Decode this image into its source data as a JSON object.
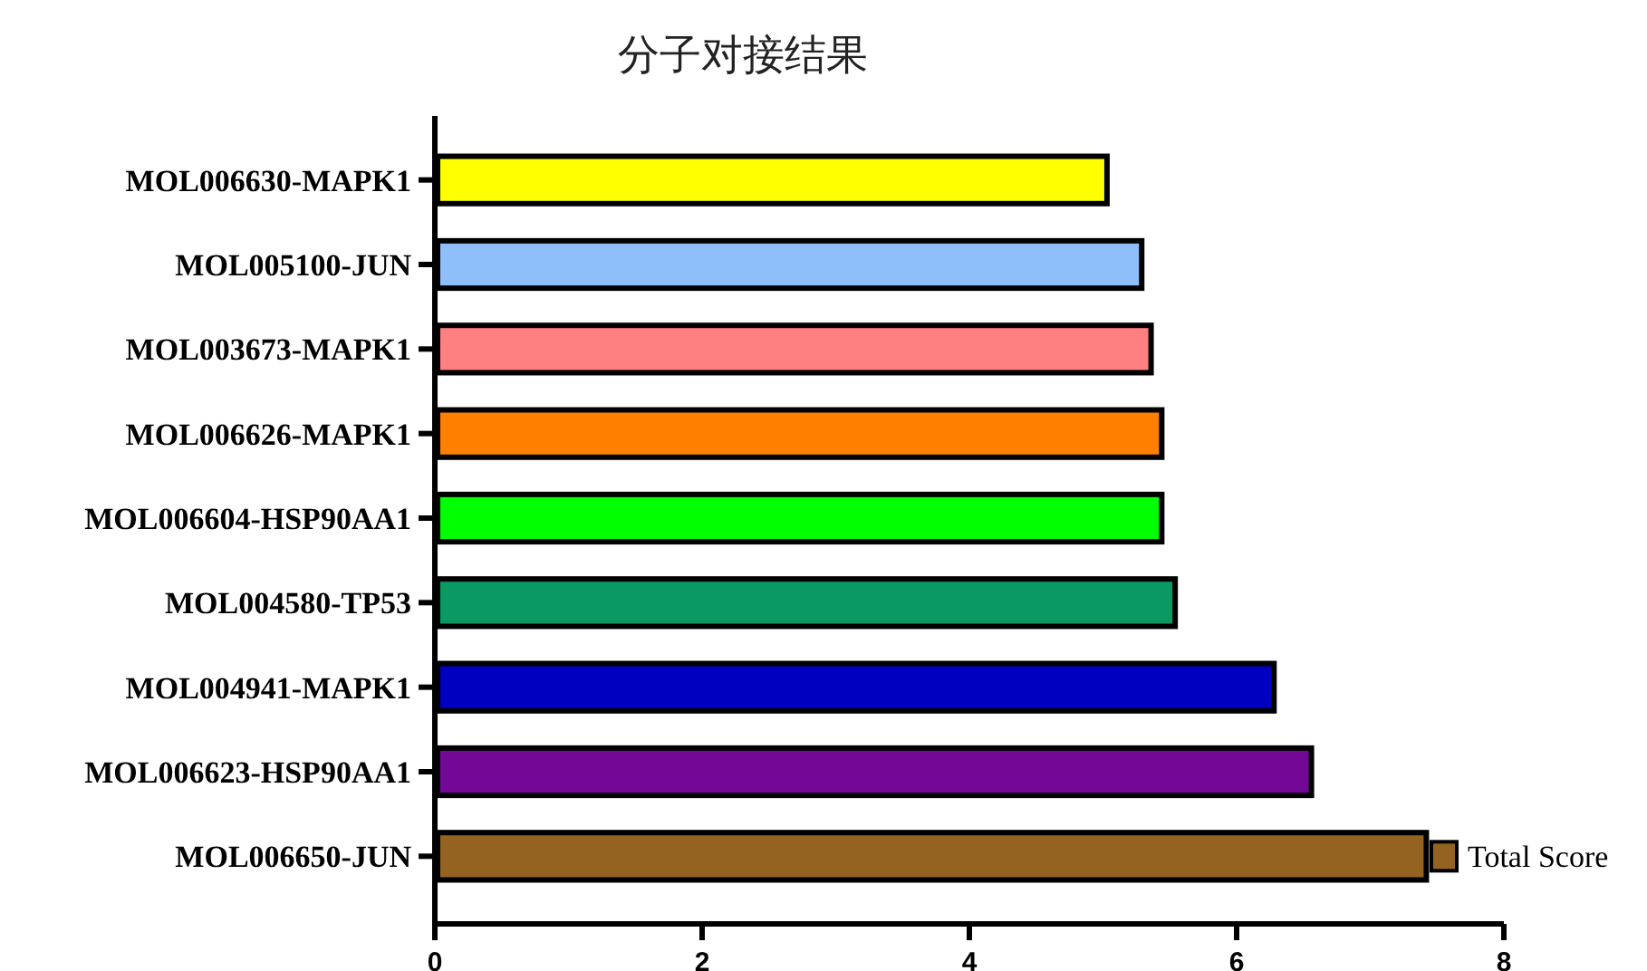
{
  "chart_data": {
    "type": "bar",
    "orientation": "horizontal",
    "title": "分子对接结果",
    "categories": [
      "MOL006630-MAPK1",
      "MOL005100-JUN",
      "MOL003673-MAPK1",
      "MOL006626-MAPK1",
      "MOL006604-HSP90AA1",
      "MOL004580-TP53",
      "MOL004941-MAPK1",
      "MOL006623-HSP90AA1",
      "MOL006650-JUN"
    ],
    "series": [
      {
        "name": "Total Score",
        "color": "#946321",
        "colors": [
          "#ffff00",
          "#8fbffa",
          "#ff8080",
          "#ff7f00",
          "#00ff00",
          "#0a9963",
          "#0000c0",
          "#720895",
          "#946321"
        ],
        "values": [
          5.03,
          5.29,
          5.36,
          5.44,
          5.44,
          5.54,
          6.28,
          6.56,
          7.42
        ]
      }
    ],
    "xlim": [
      0,
      8
    ],
    "xticks": [
      0,
      2,
      4,
      6,
      8
    ],
    "legend": "bottom right"
  }
}
